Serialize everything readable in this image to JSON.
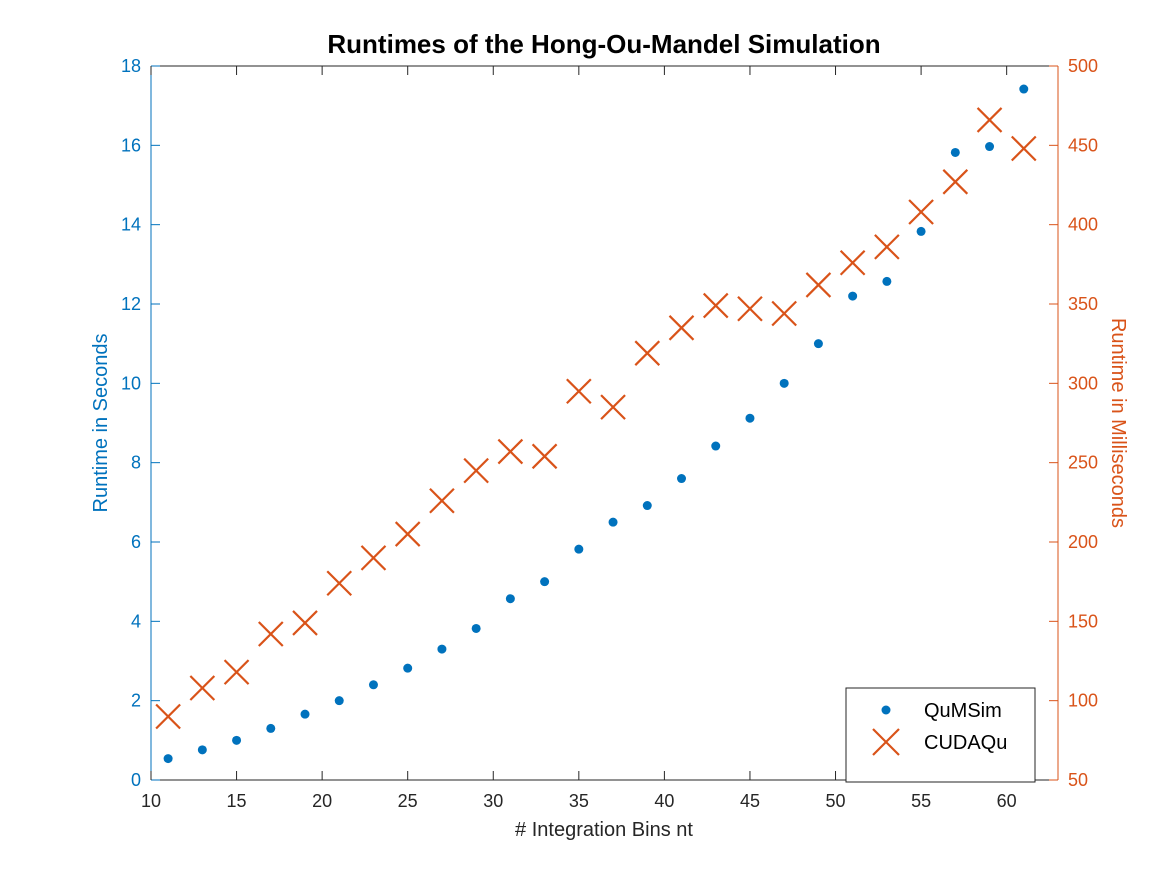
{
  "chart_data": {
    "type": "scatter",
    "title": "Runtimes of the Hong-Ou-Mandel Simulation",
    "xlabel": "# Integration Bins nt",
    "ylabel_left": "Runtime in Seconds",
    "ylabel_right": "Runtime in Milliseconds",
    "xlim": [
      10,
      63
    ],
    "ylim_left": [
      0,
      18
    ],
    "ylim_right": [
      50,
      500
    ],
    "xticks": [
      10,
      15,
      20,
      25,
      30,
      35,
      40,
      45,
      50,
      55,
      60
    ],
    "yticks_left": [
      0,
      2,
      4,
      6,
      8,
      10,
      12,
      14,
      16,
      18
    ],
    "yticks_right": [
      50,
      100,
      150,
      200,
      250,
      300,
      350,
      400,
      450,
      500
    ],
    "grid": false,
    "legend_position": "bottom-right",
    "colors": {
      "left_axis": "#0072BD",
      "right_axis": "#D95319",
      "frame": "#262626"
    },
    "series": [
      {
        "name": "QuMSim",
        "axis": "left",
        "marker": "dot",
        "color": "#0072BD",
        "x": [
          11,
          13,
          15,
          17,
          19,
          21,
          23,
          25,
          27,
          29,
          31,
          33,
          35,
          37,
          39,
          41,
          43,
          45,
          47,
          49,
          51,
          53,
          55,
          57,
          59,
          61
        ],
        "y": [
          0.54,
          0.76,
          1.0,
          1.3,
          1.66,
          2.0,
          2.4,
          2.82,
          3.3,
          3.82,
          4.57,
          5.0,
          5.82,
          6.5,
          6.92,
          7.6,
          8.42,
          9.12,
          10.0,
          11.0,
          12.2,
          12.57,
          13.83,
          15.82,
          15.97,
          17.42
        ]
      },
      {
        "name": "CUDAQu",
        "axis": "right",
        "marker": "x",
        "color": "#D95319",
        "x": [
          11,
          13,
          15,
          17,
          19,
          21,
          23,
          25,
          27,
          29,
          31,
          33,
          35,
          37,
          39,
          41,
          43,
          45,
          47,
          49,
          51,
          53,
          55,
          57,
          59,
          61
        ],
        "y": [
          90,
          108,
          118,
          142,
          149,
          174,
          190,
          205,
          226,
          245,
          257,
          254,
          295,
          285,
          319,
          335,
          349,
          347,
          344,
          362,
          376,
          386,
          408,
          427,
          466,
          448
        ]
      }
    ]
  }
}
